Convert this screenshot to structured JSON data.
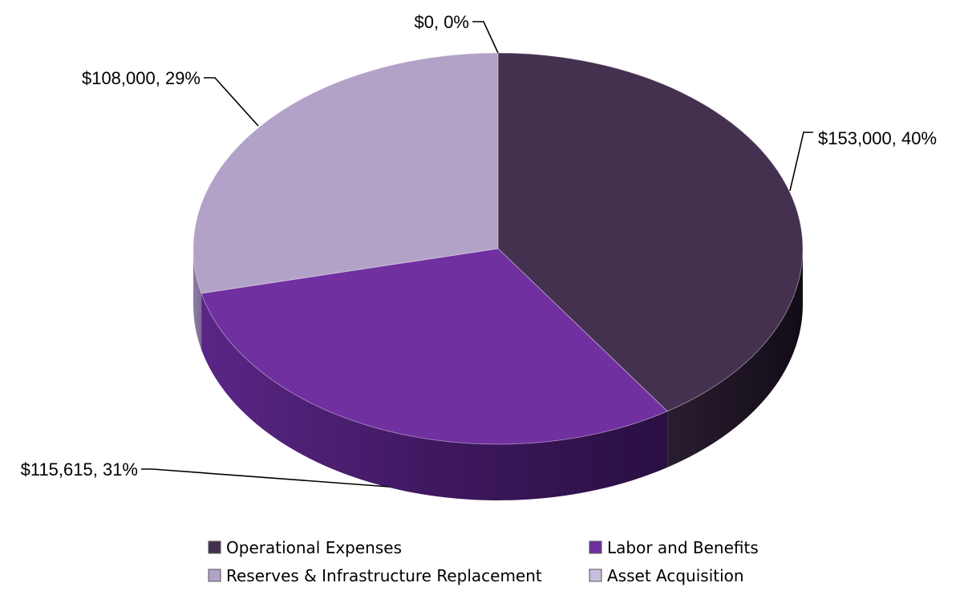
{
  "chart_data": {
    "type": "pie",
    "categories": [
      "Operational Expenses",
      "Labor and Benefits",
      "Reserves & Infrastructure Replacement",
      "Asset Acquisition"
    ],
    "values": [
      153000,
      115615,
      108000,
      0
    ],
    "percent_labels": [
      40,
      31,
      29,
      0
    ],
    "data_labels": [
      "$153,000, 40%",
      "$115,615, 31%",
      "$108,000, 29%",
      "$0, 0%"
    ],
    "colors": [
      "#44304f",
      "#7030a0",
      "#b3a2c7",
      "#c8bddd"
    ],
    "legend_position": "bottom",
    "style": "3d"
  }
}
